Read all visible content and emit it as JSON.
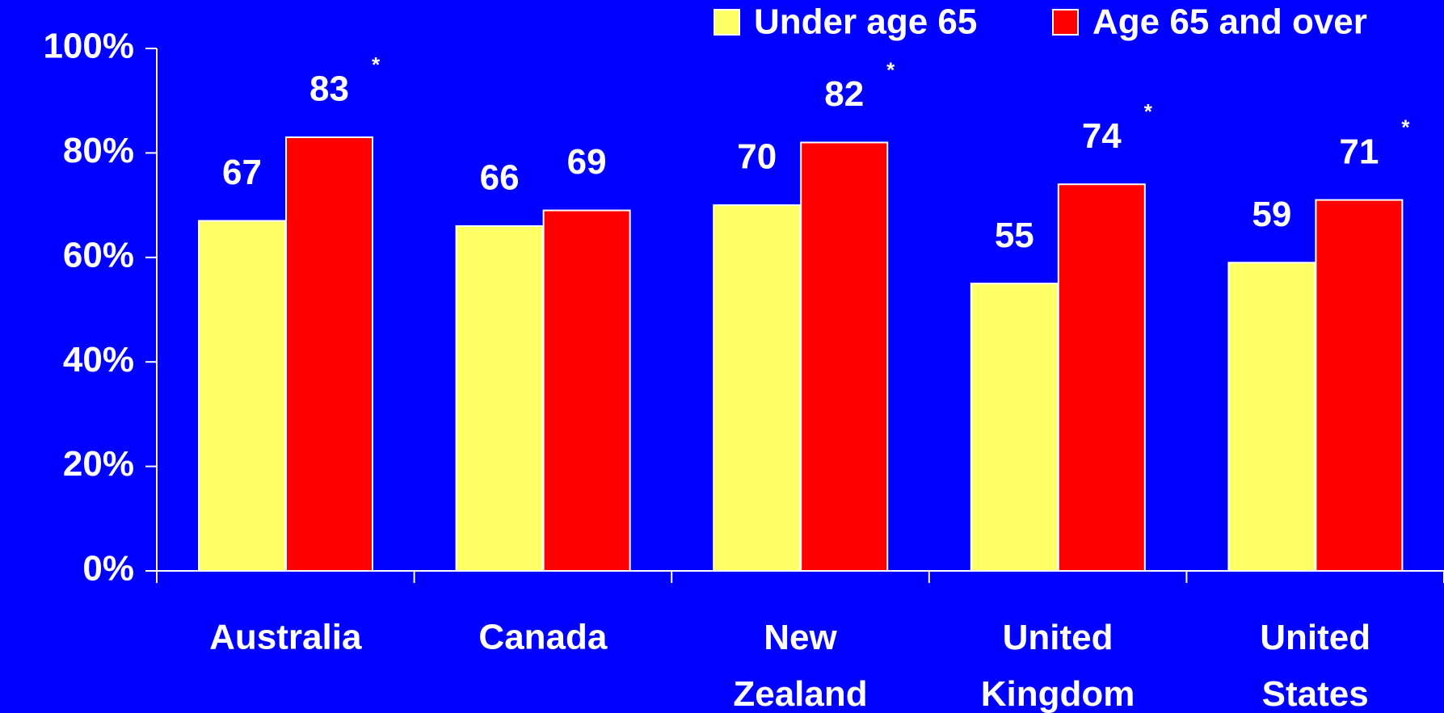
{
  "chart_data": {
    "type": "bar",
    "categories": [
      "Australia",
      "Canada",
      "New Zealand",
      "United Kingdom",
      "United States"
    ],
    "series": [
      {
        "name": "Under age 65",
        "color": "#ffff66",
        "values": [
          67,
          66,
          70,
          55,
          59
        ]
      },
      {
        "name": "Age 65 and over",
        "color": "#ff0000",
        "values": [
          83,
          69,
          82,
          74,
          71
        ],
        "markers": [
          "*",
          null,
          "*",
          "*",
          "*"
        ]
      }
    ],
    "ylim": [
      0,
      100
    ],
    "yticks": [
      {
        "value": 0,
        "label": "0%"
      },
      {
        "value": 20,
        "label": "20%"
      },
      {
        "value": 40,
        "label": "40%"
      },
      {
        "value": 60,
        "label": "60%"
      },
      {
        "value": 80,
        "label": "80%"
      },
      {
        "value": 100,
        "label": "100%"
      }
    ],
    "legend": "top-right"
  }
}
